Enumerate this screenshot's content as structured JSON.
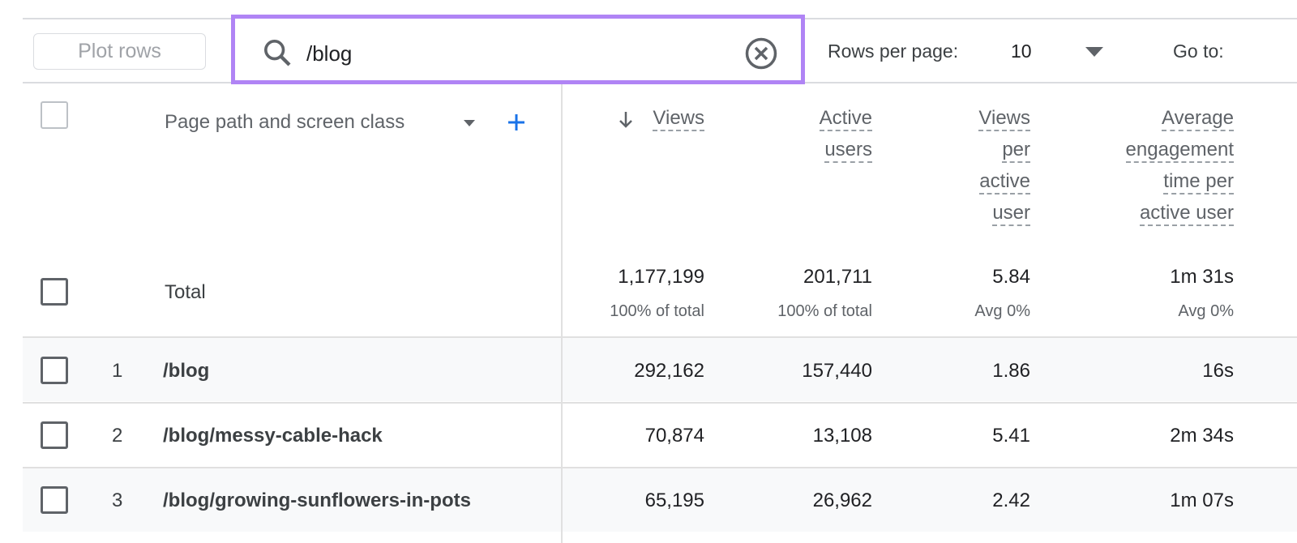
{
  "toolbar": {
    "plot_rows": "Plot rows",
    "search_value": "/blog",
    "rows_per_page_label": "Rows per page:",
    "rows_per_page_value": "10",
    "goto_label": "Go to:"
  },
  "colors": {
    "highlight": "#b084f5",
    "accent": "#1a73e8"
  },
  "header": {
    "dimension": "Page path and screen class",
    "columns": [
      [
        "Views"
      ],
      [
        "Active",
        "users"
      ],
      [
        "Views",
        "per",
        "active",
        "user"
      ],
      [
        "Average",
        "engagement",
        "time per",
        "active user"
      ]
    ]
  },
  "total": {
    "label": "Total",
    "values": [
      "1,177,199",
      "201,711",
      "5.84",
      "1m 31s"
    ],
    "subs": [
      "100% of total",
      "100% of total",
      "Avg 0%",
      "Avg 0%"
    ]
  },
  "rows": [
    {
      "index": "1",
      "path": "/blog",
      "values": [
        "292,162",
        "157,440",
        "1.86",
        "16s"
      ]
    },
    {
      "index": "2",
      "path": "/blog/messy-cable-hack",
      "values": [
        "70,874",
        "13,108",
        "5.41",
        "2m 34s"
      ]
    },
    {
      "index": "3",
      "path": "/blog/growing-sunflowers-in-pots",
      "values": [
        "65,195",
        "26,962",
        "2.42",
        "1m 07s"
      ]
    }
  ]
}
